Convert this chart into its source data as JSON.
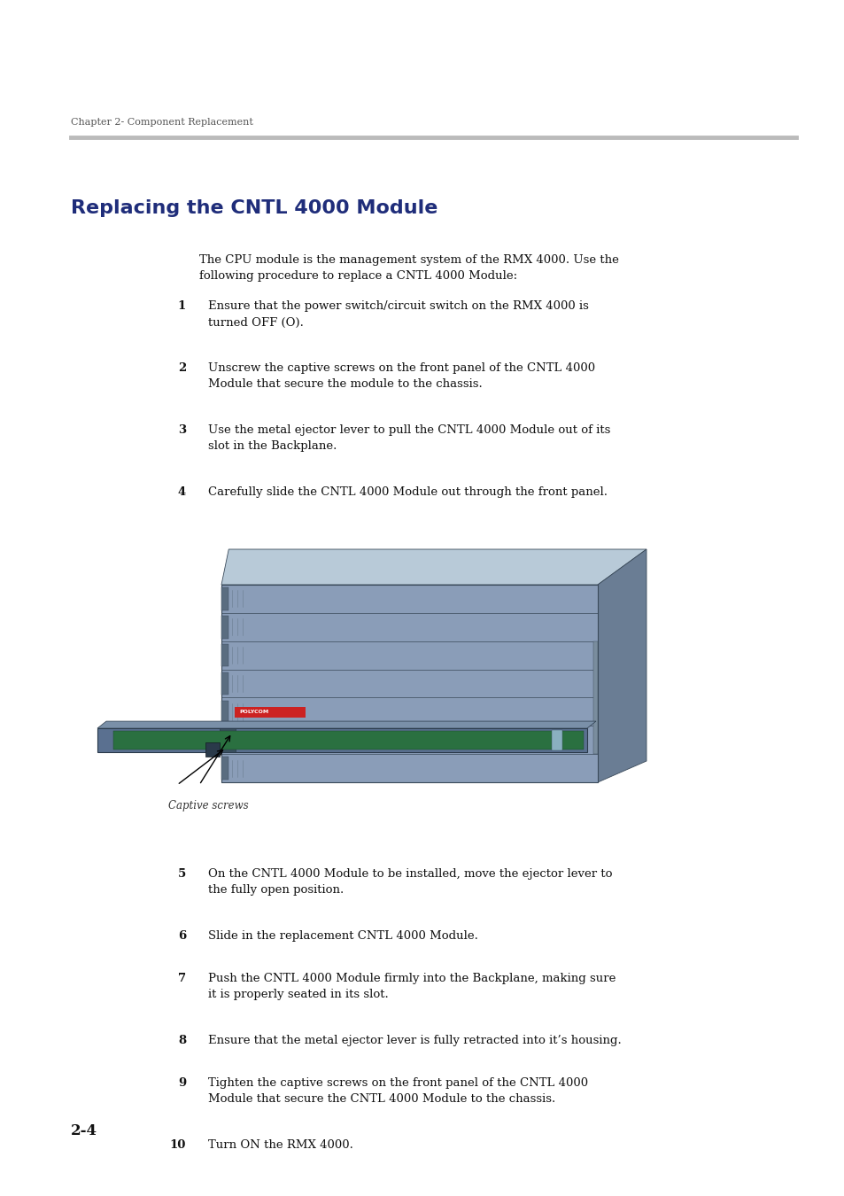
{
  "background_color": "#ffffff",
  "page_width": 9.54,
  "page_height": 13.5,
  "chapter_header": "Chapter 2- Component Replacement",
  "title": "Replacing the CNTL 4000 Module",
  "title_color": "#1f2d7a",
  "intro_text": "The CPU module is the management system of the RMX 4000. Use the\nfollowing procedure to replace a CNTL 4000 Module:",
  "steps1": [
    {
      "num": "1",
      "text": "Ensure that the power switch/circuit switch on the RMX 4000 is\nturned OFF (O)."
    },
    {
      "num": "2",
      "text": "Unscrew the captive screws on the front panel of the CNTL 4000\nModule that secure the module to the chassis."
    },
    {
      "num": "3",
      "text": "Use the metal ejector lever to pull the CNTL 4000 Module out of its\nslot in the Backplane."
    },
    {
      "num": "4",
      "text": "Carefully slide the CNTL 4000 Module out through the front panel."
    }
  ],
  "steps2": [
    {
      "num": "5",
      "text": "On the CNTL 4000 Module to be installed, move the ejector lever to\nthe fully open position."
    },
    {
      "num": "6",
      "text": "Slide in the replacement CNTL 4000 Module."
    },
    {
      "num": "7",
      "text": "Push the CNTL 4000 Module firmly into the Backplane, making sure\nit is properly seated in its slot."
    },
    {
      "num": "8",
      "text": "Ensure that the metal ejector lever is fully retracted into it’s housing."
    },
    {
      "num": "9",
      "text": "Tighten the captive screws on the front panel of the CNTL 4000\nModule that secure the CNTL 4000 Module to the chassis."
    },
    {
      "num": "10",
      "text": "Turn ON the RMX 4000."
    }
  ],
  "image_caption": "Captive screws",
  "page_num": "2-4",
  "text_fontsize": 9.5,
  "step_num_fontsize": 9.5,
  "chapter_fontsize": 8,
  "title_fontsize": 16,
  "page_num_fontsize": 12
}
